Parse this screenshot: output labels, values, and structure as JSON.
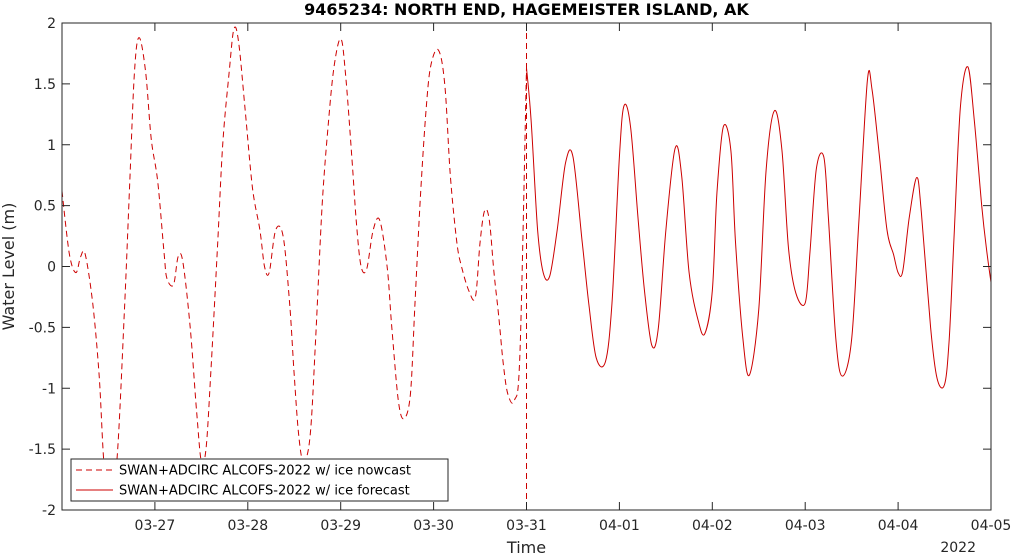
{
  "chart_data": {
    "type": "line",
    "title": "9465234: NORTH END, HAGEMEISTER ISLAND, AK",
    "xlabel": "Time",
    "ylabel": "Water Level (m)",
    "year_label": "2022",
    "x_range": [
      26.0,
      36.0
    ],
    "ylim": [
      -2,
      2
    ],
    "yticks": [
      -2,
      -1.5,
      -1,
      -0.5,
      0,
      0.5,
      1,
      1.5,
      2
    ],
    "ytick_labels": [
      "-2",
      "-1.5",
      "-1",
      "-0.5",
      "0",
      "0.5",
      "1",
      "1.5",
      "2"
    ],
    "xticks": [
      27,
      28,
      29,
      30,
      31,
      32,
      33,
      34,
      35,
      36
    ],
    "xtick_labels": [
      "03-27",
      "03-28",
      "03-29",
      "03-30",
      "03-31",
      "04-01",
      "04-02",
      "04-03",
      "04-04",
      "04-05"
    ],
    "forecast_start_marker": 31,
    "grid": false,
    "legend_position": "bottom-left",
    "series": [
      {
        "name": "SWAN+ADCIRC ALCOFS-2022 w/ ice nowcast",
        "color": "#cc0000",
        "style": "dashed",
        "x": [
          26.0,
          26.08,
          26.15,
          26.2,
          26.25,
          26.33,
          26.4,
          26.45,
          26.5,
          26.55,
          26.6,
          26.67,
          26.73,
          26.78,
          26.83,
          26.9,
          26.96,
          27.03,
          27.1,
          27.13,
          27.2,
          27.25,
          27.3,
          27.38,
          27.45,
          27.5,
          27.55,
          27.6,
          27.67,
          27.73,
          27.8,
          27.85,
          27.9,
          27.97,
          28.05,
          28.13,
          28.18,
          28.23,
          28.3,
          28.38,
          28.45,
          28.5,
          28.55,
          28.6,
          28.67,
          28.73,
          28.8,
          28.87,
          28.93,
          29.0,
          29.05,
          29.12,
          29.17,
          29.22,
          29.28,
          29.35,
          29.42,
          29.5,
          29.55,
          29.62,
          29.68,
          29.75,
          29.8,
          29.86,
          29.92,
          29.97,
          30.05,
          30.12,
          30.18,
          30.25,
          30.3,
          30.38,
          30.45,
          30.5,
          30.55,
          30.6,
          30.65,
          30.7,
          30.75,
          30.8,
          30.87,
          30.93,
          31.0
        ],
        "y": [
          0.62,
          0.1,
          -0.05,
          0.08,
          0.1,
          -0.3,
          -0.9,
          -1.6,
          -1.8,
          -1.8,
          -1.5,
          -0.4,
          0.7,
          1.6,
          1.88,
          1.6,
          1.05,
          0.7,
          0.1,
          -0.1,
          -0.15,
          0.08,
          0.04,
          -0.5,
          -1.2,
          -1.6,
          -1.5,
          -0.9,
          0.1,
          1.0,
          1.6,
          1.95,
          1.85,
          1.3,
          0.65,
          0.3,
          0.0,
          -0.05,
          0.3,
          0.25,
          -0.3,
          -0.9,
          -1.4,
          -1.6,
          -1.4,
          -0.6,
          0.5,
          1.2,
          1.65,
          1.87,
          1.6,
          0.9,
          0.35,
          0.0,
          -0.02,
          0.3,
          0.38,
          0.0,
          -0.5,
          -1.1,
          -1.25,
          -1.05,
          -0.3,
          0.6,
          1.3,
          1.65,
          1.78,
          1.5,
          0.75,
          0.2,
          0.0,
          -0.2,
          -0.25,
          0.2,
          0.46,
          0.38,
          -0.05,
          -0.4,
          -0.8,
          -1.05,
          -1.1,
          -0.7,
          1.63
        ]
      },
      {
        "name": "SWAN+ADCIRC ALCOFS-2022 w/ ice forecast",
        "color": "#cc0000",
        "style": "solid",
        "x": [
          31.0,
          31.05,
          31.12,
          31.18,
          31.25,
          31.33,
          31.42,
          31.5,
          31.6,
          31.67,
          31.75,
          31.85,
          31.92,
          32.0,
          32.05,
          32.12,
          32.2,
          32.27,
          32.35,
          32.42,
          32.5,
          32.6,
          32.67,
          32.75,
          32.85,
          32.92,
          33.0,
          33.05,
          33.12,
          33.2,
          33.25,
          33.33,
          33.4,
          33.5,
          33.58,
          33.67,
          33.75,
          33.82,
          33.9,
          34.0,
          34.05,
          34.12,
          34.2,
          34.25,
          34.33,
          34.4,
          34.5,
          34.58,
          34.67,
          34.72,
          34.8,
          34.88,
          34.95,
          35.0,
          35.05,
          35.12,
          35.2,
          35.25,
          35.35,
          35.42,
          35.5,
          35.55,
          35.6,
          35.67,
          35.75,
          35.82,
          35.9,
          35.95,
          36.0
        ],
        "y": [
          1.63,
          1.2,
          0.3,
          -0.05,
          -0.08,
          0.3,
          0.85,
          0.9,
          0.2,
          -0.3,
          -0.75,
          -0.78,
          -0.3,
          0.9,
          1.32,
          1.15,
          0.4,
          -0.2,
          -0.65,
          -0.5,
          0.3,
          0.97,
          0.75,
          -0.05,
          -0.45,
          -0.55,
          -0.2,
          0.6,
          1.15,
          0.95,
          0.2,
          -0.6,
          -0.89,
          -0.35,
          0.8,
          1.28,
          0.95,
          0.15,
          -0.22,
          -0.3,
          0.1,
          0.8,
          0.9,
          0.4,
          -0.6,
          -0.9,
          -0.6,
          0.4,
          1.53,
          1.45,
          0.9,
          0.3,
          0.1,
          -0.05,
          -0.04,
          0.4,
          0.73,
          0.45,
          -0.5,
          -0.92,
          -0.97,
          -0.6,
          0.2,
          1.3,
          1.64,
          1.2,
          0.5,
          0.15,
          -0.13
        ]
      }
    ]
  }
}
